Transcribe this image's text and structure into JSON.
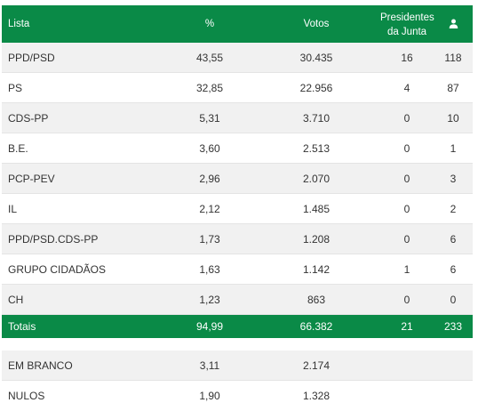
{
  "header": {
    "lista": "Lista",
    "pct": "%",
    "votos": "Votos",
    "presidentes_line1": "Presidentes",
    "presidentes_line2": "da Junta",
    "mandates_icon": "user-icon"
  },
  "rows": [
    {
      "lista": "PPD/PSD",
      "pct": "43,55",
      "votos": "30.435",
      "presidentes": "16",
      "mandatos": "118"
    },
    {
      "lista": "PS",
      "pct": "32,85",
      "votos": "22.956",
      "presidentes": "4",
      "mandatos": "87"
    },
    {
      "lista": "CDS-PP",
      "pct": "5,31",
      "votos": "3.710",
      "presidentes": "0",
      "mandatos": "10"
    },
    {
      "lista": "B.E.",
      "pct": "3,60",
      "votos": "2.513",
      "presidentes": "0",
      "mandatos": "1"
    },
    {
      "lista": "PCP-PEV",
      "pct": "2,96",
      "votos": "2.070",
      "presidentes": "0",
      "mandatos": "3"
    },
    {
      "lista": "IL",
      "pct": "2,12",
      "votos": "1.485",
      "presidentes": "0",
      "mandatos": "2"
    },
    {
      "lista": "PPD/PSD.CDS-PP",
      "pct": "1,73",
      "votos": "1.208",
      "presidentes": "0",
      "mandatos": "6"
    },
    {
      "lista": "GRUPO CIDADÃOS",
      "pct": "1,63",
      "votos": "1.142",
      "presidentes": "1",
      "mandatos": "6"
    },
    {
      "lista": "CH",
      "pct": "1,23",
      "votos": "863",
      "presidentes": "0",
      "mandatos": "0"
    }
  ],
  "totals": {
    "lista": "Totais",
    "pct": "94,99",
    "votos": "66.382",
    "presidentes": "21",
    "mandatos": "233"
  },
  "extra": [
    {
      "lista": "EM BRANCO",
      "pct": "3,11",
      "votos": "2.174"
    },
    {
      "lista": "NULOS",
      "pct": "1,90",
      "votos": "1.328"
    }
  ],
  "colors": {
    "accent": "#0a8a47",
    "row_alt": "#f1f1f1"
  }
}
